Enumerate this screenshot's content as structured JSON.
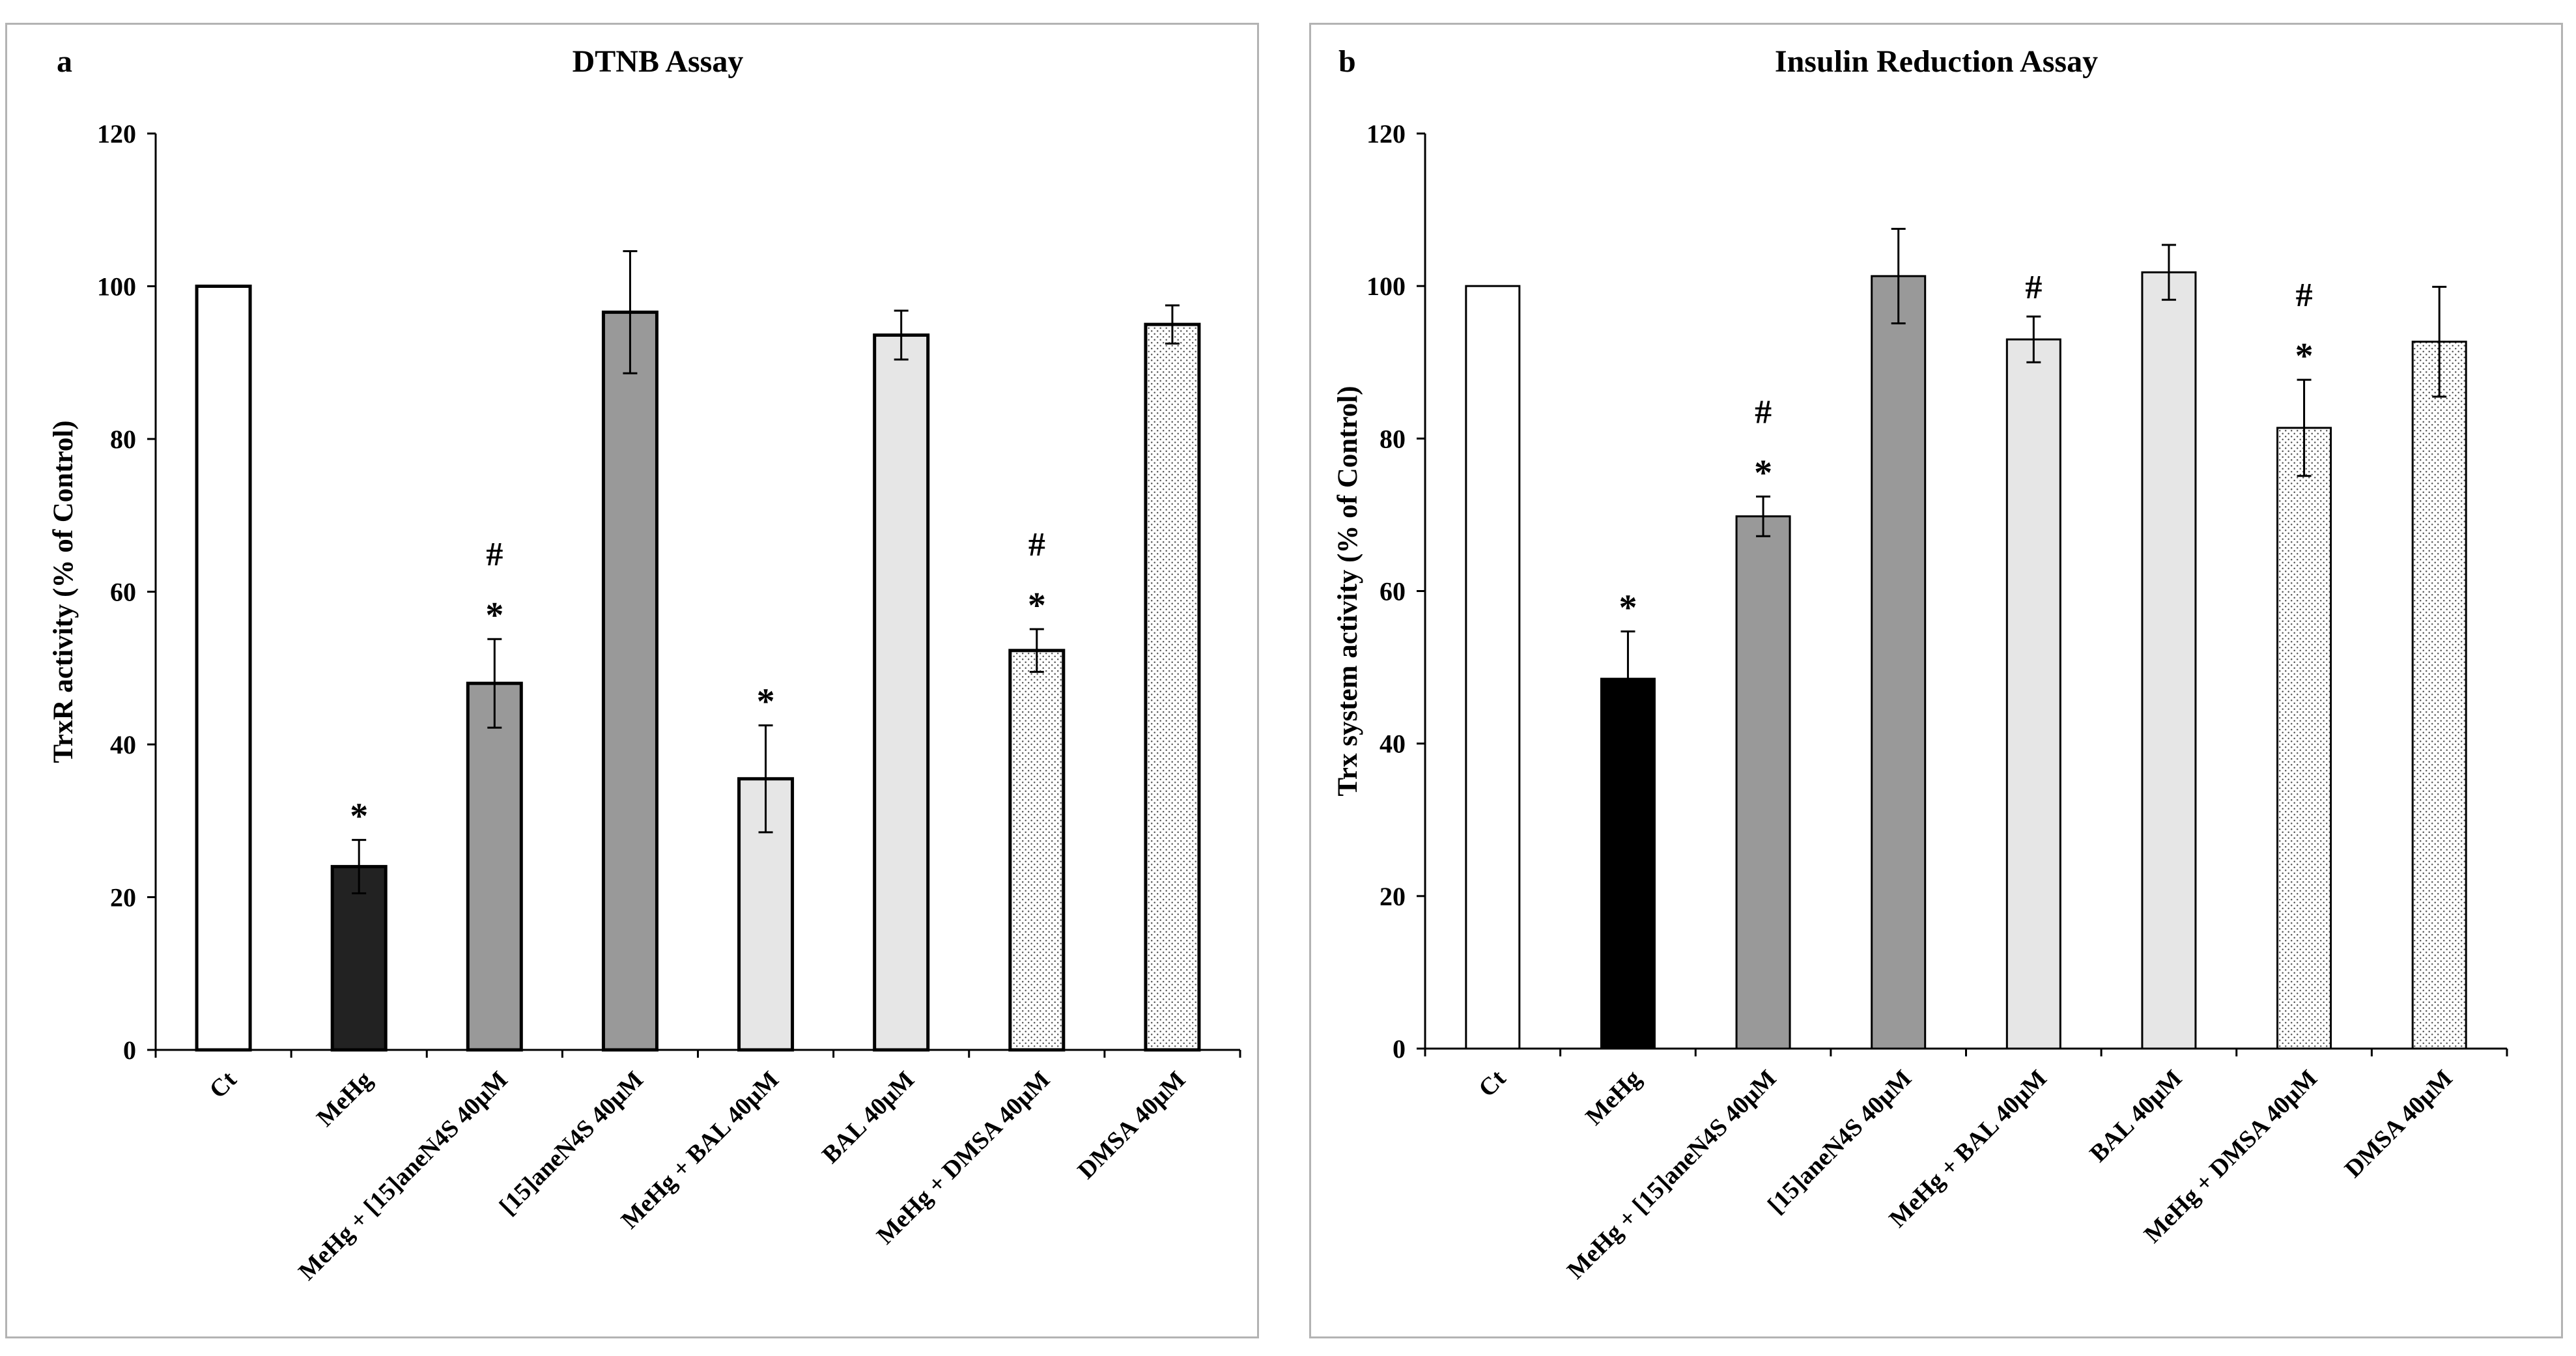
{
  "chart_data": [
    {
      "type": "bar",
      "panel_label": "a",
      "title": "DTNB Assay",
      "ylabel": "TrxR activity (% of Control)",
      "xlabel": "",
      "ylim": [
        0,
        120
      ],
      "yticks": [
        0,
        20,
        40,
        60,
        80,
        100,
        120
      ],
      "categories": [
        "Ct",
        "MeHg",
        "MeHg + [15]aneN4S 40µM",
        "[15]aneN4S 40µM",
        "MeHg + BAL 40µM",
        "BAL 40µM",
        "MeHg + DMSA 40µM",
        "DMSA 40µM"
      ],
      "values": [
        100,
        24,
        48,
        96.6,
        35.5,
        93.6,
        52.3,
        95
      ],
      "errors": [
        0,
        3.5,
        5.8,
        8,
        7,
        3.2,
        2.8,
        2.5
      ],
      "annotations": [
        "",
        "*",
        "#\n*",
        "",
        "*",
        "",
        "#\n*",
        ""
      ],
      "fills": [
        "#ffffff",
        "#222222",
        "#999999",
        "#999999",
        "#e6e6e6",
        "#e6e6e6",
        "dots",
        "dots"
      ]
    },
    {
      "type": "bar",
      "panel_label": "b",
      "title": "Insulin Reduction Assay",
      "ylabel": "Trx system activity (% of Control)",
      "xlabel": "",
      "ylim": [
        0,
        120
      ],
      "yticks": [
        0,
        20,
        40,
        60,
        80,
        100,
        120
      ],
      "categories": [
        "Ct",
        "MeHg",
        "MeHg + [15]aneN4S 40µM",
        "[15]aneN4S 40µM",
        "MeHg + BAL 40µM",
        "BAL 40µM",
        "MeHg + DMSA 40µM",
        "DMSA 40µM"
      ],
      "values": [
        100,
        48.5,
        69.8,
        101.3,
        93,
        101.8,
        81.4,
        92.7
      ],
      "errors": [
        0,
        6.2,
        2.6,
        6.2,
        3,
        3.6,
        6.3,
        7.2
      ],
      "annotations": [
        "",
        "*",
        "#\n*",
        "",
        "#",
        "",
        "#\n*",
        ""
      ],
      "fills": [
        "#ffffff",
        "#000000",
        "#999999",
        "#999999",
        "#e6e6e6",
        "#e6e6e6",
        "dots",
        "dots"
      ]
    }
  ]
}
